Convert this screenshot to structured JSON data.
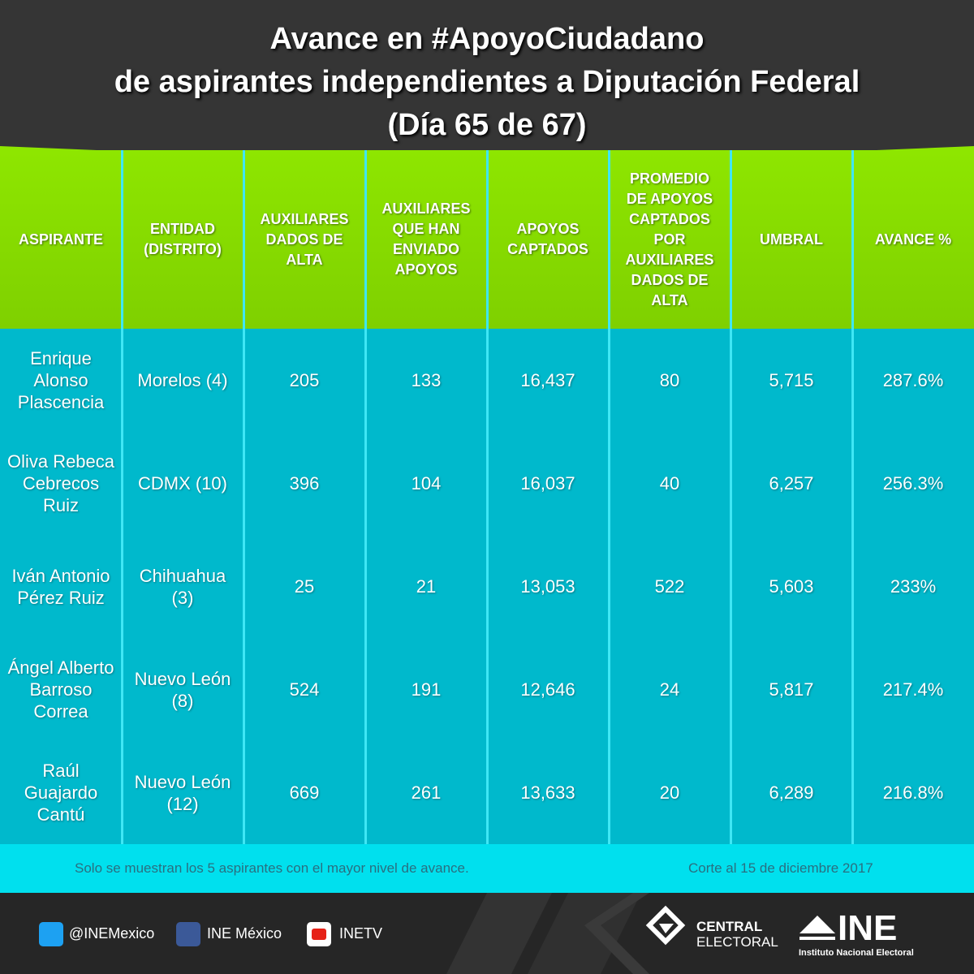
{
  "header": {
    "title_lines": [
      "Avance en #ApoyoCiudadano",
      "de aspirantes independientes a Diputación Federal",
      "(Día 65 de 67)"
    ]
  },
  "table": {
    "columns": [
      "ASPIRANTE",
      "ENTIDAD (DISTRITO)",
      "AUXILIARES DADOS DE ALTA",
      "AUXILIARES QUE HAN ENVIADO APOYOS",
      "APOYOS CAPTADOS",
      "PROMEDIO DE APOYOS CAPTADOS POR AUXILIARES DADOS DE ALTA",
      "UMBRAL",
      "AVANCE %"
    ],
    "rows": [
      [
        "Enrique Alonso Plascencia",
        "Morelos (4)",
        "205",
        "133",
        "16,437",
        "80",
        "5,715",
        "287.6%"
      ],
      [
        "Oliva Rebeca Cebrecos Ruiz",
        "CDMX (10)",
        "396",
        "104",
        "16,037",
        "40",
        "6,257",
        "256.3%"
      ],
      [
        "Iván Antonio Pérez Ruiz",
        "Chihuahua (3)",
        "25",
        "21",
        "13,053",
        "522",
        "5,603",
        "233%"
      ],
      [
        "Ángel Alberto Barroso Correa",
        "Nuevo León (8)",
        "524",
        "191",
        "12,646",
        "24",
        "5,817",
        "217.4%"
      ],
      [
        "Raúl Guajardo Cantú",
        "Nuevo León (12)",
        "669",
        "261",
        "13,633",
        "20",
        "6,289",
        "216.8%"
      ]
    ]
  },
  "notes": {
    "left": "Solo se muestran los 5 aspirantes con el mayor nivel de avance.",
    "right": "Corte al 15 de diciembre 2017"
  },
  "footer": {
    "social": [
      "@INEMexico",
      "INE México",
      "INETV"
    ],
    "central": [
      "CENTRAL",
      "ELECTORAL"
    ],
    "ine": "INE",
    "ine_sub": "Instituto Nacional Electoral"
  }
}
